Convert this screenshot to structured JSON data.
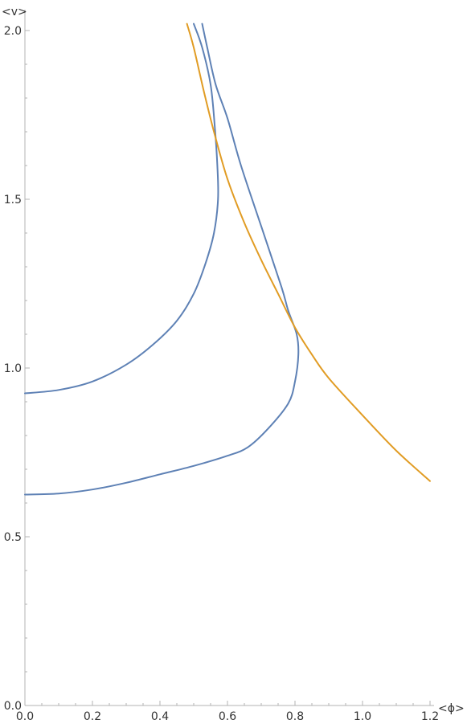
{
  "chart_data": {
    "type": "line",
    "xlabel": "<ϕ>",
    "ylabel": "<v>",
    "xlim": [
      0,
      1.2
    ],
    "ylim": [
      0,
      2.0
    ],
    "grid": false,
    "x_ticks": [
      "0.0",
      "0.2",
      "0.4",
      "0.6",
      "0.8",
      "1.0",
      "1.2"
    ],
    "y_ticks": [
      "0.0",
      "0.5",
      "1.0",
      "1.5",
      "2.0"
    ],
    "colors": {
      "blue": "#5e81b5",
      "orange": "#e19c24",
      "axis": "#b3b3b3",
      "text": "#333333"
    },
    "series": [
      {
        "color": "#5e81b5",
        "points": [
          [
            0.0,
            0.925
          ],
          [
            0.1,
            0.935
          ],
          [
            0.2,
            0.96
          ],
          [
            0.3,
            1.01
          ],
          [
            0.38,
            1.07
          ],
          [
            0.45,
            1.14
          ],
          [
            0.5,
            1.22
          ],
          [
            0.535,
            1.31
          ],
          [
            0.56,
            1.4
          ],
          [
            0.572,
            1.5
          ],
          [
            0.57,
            1.6
          ],
          [
            0.562,
            1.72
          ],
          [
            0.55,
            1.84
          ],
          [
            0.525,
            1.95
          ],
          [
            0.5,
            2.02
          ]
        ]
      },
      {
        "color": "#5e81b5",
        "points": [
          [
            0.0,
            0.625
          ],
          [
            0.1,
            0.628
          ],
          [
            0.2,
            0.64
          ],
          [
            0.3,
            0.66
          ],
          [
            0.4,
            0.685
          ],
          [
            0.5,
            0.71
          ],
          [
            0.6,
            0.74
          ],
          [
            0.66,
            0.765
          ],
          [
            0.72,
            0.82
          ],
          [
            0.78,
            0.895
          ],
          [
            0.8,
            0.96
          ],
          [
            0.81,
            1.04
          ],
          [
            0.805,
            1.1
          ],
          [
            0.78,
            1.17
          ],
          [
            0.76,
            1.24
          ],
          [
            0.7,
            1.42
          ],
          [
            0.64,
            1.6
          ],
          [
            0.6,
            1.74
          ],
          [
            0.565,
            1.84
          ],
          [
            0.54,
            1.95
          ],
          [
            0.525,
            2.02
          ]
        ]
      },
      {
        "color": "#e19c24",
        "points": [
          [
            0.48,
            2.02
          ],
          [
            0.5,
            1.95
          ],
          [
            0.53,
            1.82
          ],
          [
            0.56,
            1.7
          ],
          [
            0.6,
            1.56
          ],
          [
            0.65,
            1.43
          ],
          [
            0.7,
            1.32
          ],
          [
            0.75,
            1.22
          ],
          [
            0.8,
            1.12
          ],
          [
            0.85,
            1.04
          ],
          [
            0.9,
            0.97
          ],
          [
            1.0,
            0.86
          ],
          [
            1.1,
            0.755
          ],
          [
            1.2,
            0.665
          ]
        ]
      }
    ]
  }
}
